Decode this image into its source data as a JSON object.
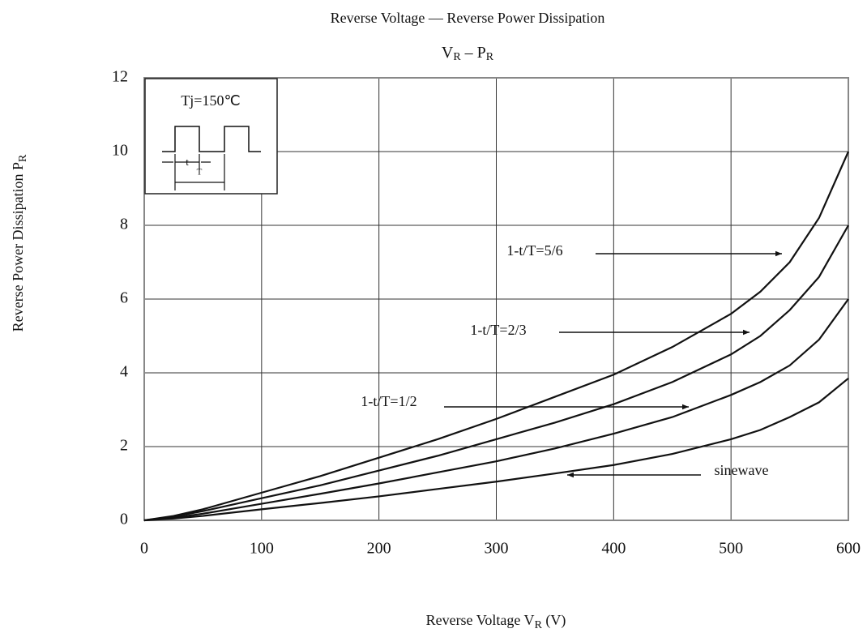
{
  "chart_data": {
    "type": "line",
    "title": "Reverse Voltage — Reverse Power Dissipation",
    "subtitle": [
      "V",
      "R",
      " –   P",
      "R"
    ],
    "xlabel": [
      "Reverse Voltage V",
      "R",
      " (V)"
    ],
    "ylabel": [
      "Reverse Power Dissipation P",
      "R"
    ],
    "x": [
      0,
      25,
      50,
      100,
      150,
      200,
      250,
      300,
      350,
      400,
      450,
      500,
      525,
      550,
      575,
      600
    ],
    "series": [
      {
        "name": "1-t/T=5/6",
        "color": "#111111",
        "values": [
          0,
          0.12,
          0.3,
          0.75,
          1.2,
          1.7,
          2.2,
          2.75,
          3.35,
          3.95,
          4.7,
          5.6,
          6.2,
          7.0,
          8.2,
          10
        ]
      },
      {
        "name": "1-t/T=2/3",
        "color": "#111111",
        "values": [
          0,
          0.1,
          0.25,
          0.6,
          0.95,
          1.35,
          1.75,
          2.2,
          2.65,
          3.15,
          3.75,
          4.5,
          5.0,
          5.7,
          6.6,
          8
        ]
      },
      {
        "name": "1-t/T=1/2",
        "color": "#111111",
        "values": [
          0,
          0.07,
          0.18,
          0.45,
          0.72,
          1.0,
          1.3,
          1.6,
          1.95,
          2.35,
          2.8,
          3.4,
          3.75,
          4.2,
          4.9,
          6
        ]
      },
      {
        "name": "sinewave",
        "color": "#111111",
        "values": [
          0,
          0.05,
          0.12,
          0.3,
          0.47,
          0.65,
          0.85,
          1.05,
          1.27,
          1.5,
          1.8,
          2.2,
          2.45,
          2.8,
          3.2,
          3.85
        ]
      }
    ],
    "xlim": [
      0,
      600
    ],
    "xticks": [
      0,
      100,
      200,
      300,
      400,
      500,
      600
    ],
    "ylim": [
      0,
      12
    ],
    "yticks": [
      0,
      2,
      4,
      6,
      8,
      10,
      12
    ],
    "grid": true,
    "inset": {
      "label": "Tj=150℃",
      "t": "t",
      "T": "T"
    }
  }
}
